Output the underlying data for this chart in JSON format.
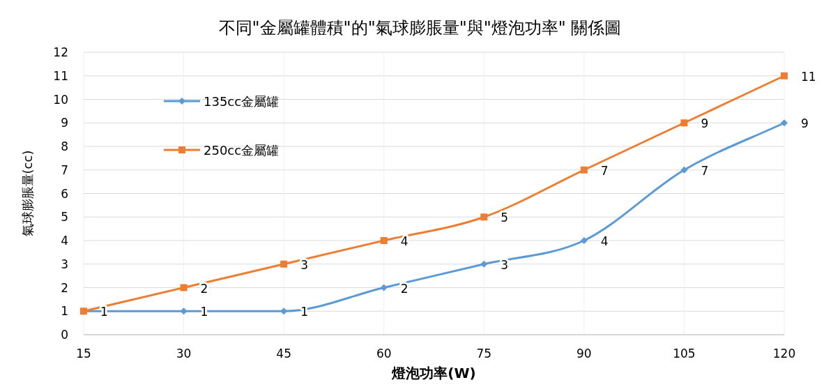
{
  "chart_data": {
    "type": "line",
    "title": "不同\"金屬罐體積\"的\"氣球膨脹量\"與\"燈泡功率\" 關係圖",
    "xlabel": "燈泡功率(W)",
    "ylabel": "氣球膨脹量(cc)",
    "x": [
      15,
      30,
      45,
      60,
      75,
      90,
      105,
      120
    ],
    "xlim": [
      15,
      120
    ],
    "xticks": [
      15,
      30,
      45,
      60,
      75,
      90,
      105,
      120
    ],
    "ylim": [
      0,
      12
    ],
    "yticks": [
      0,
      1,
      2,
      3,
      4,
      5,
      6,
      7,
      8,
      9,
      10,
      11,
      12
    ],
    "series": [
      {
        "name": "135cc金屬罐",
        "color": "#5b9bd5",
        "marker": "diamond",
        "values": [
          1,
          1,
          1,
          2,
          3,
          4,
          7,
          9
        ],
        "value_labels": [
          "1",
          "1",
          "1",
          "2",
          "3",
          "4",
          "7",
          "9"
        ]
      },
      {
        "name": "250cc金屬罐",
        "color": "#ed7d31",
        "marker": "square",
        "values": [
          1,
          2,
          3,
          4,
          5,
          7,
          9,
          11
        ],
        "value_labels": [
          null,
          "2",
          "3",
          "4",
          "5",
          "7",
          "9",
          "11"
        ]
      }
    ],
    "grid": true,
    "legend": "top left"
  }
}
